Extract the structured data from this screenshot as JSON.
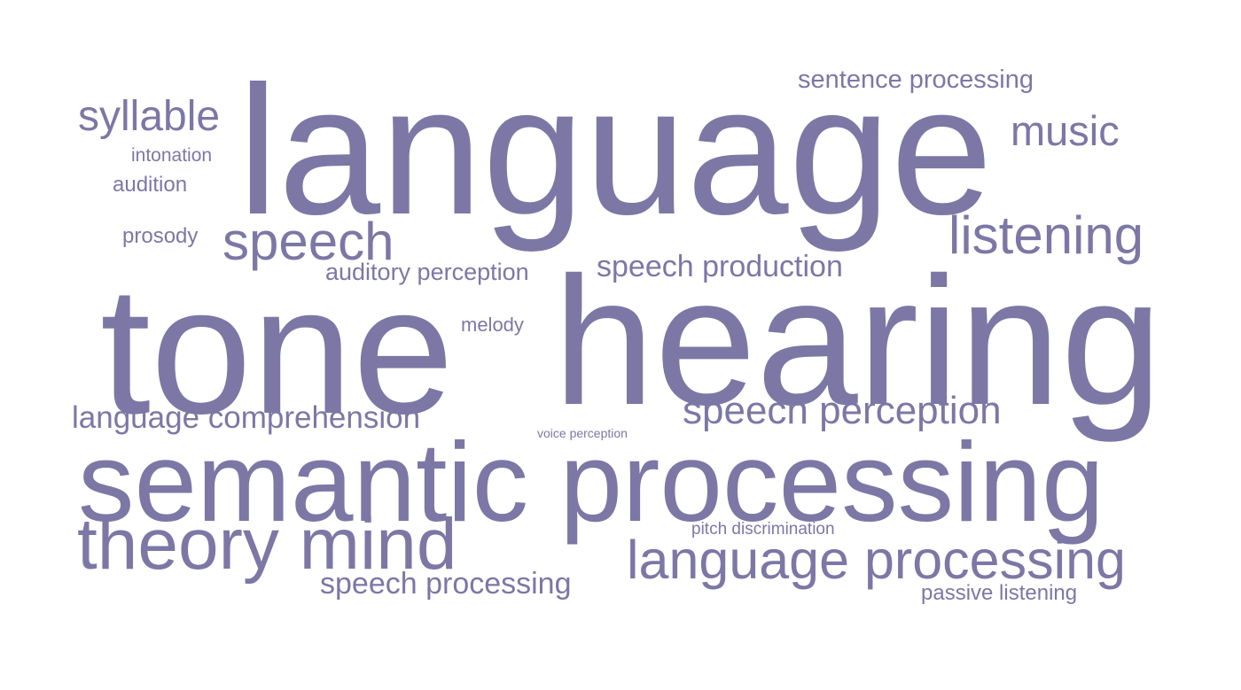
{
  "words": {
    "language": "language",
    "hearing": "hearing",
    "tone": "tone",
    "semantic_processing": "semantic processing",
    "theory_mind": "theory mind",
    "language_processing": "language processing",
    "listening": "listening",
    "speech": "speech",
    "syllable": "syllable",
    "music": "music",
    "speech_perception": "speech perception",
    "speech_production": "speech production",
    "language_comprehension": "language comprehension",
    "speech_processing": "speech processing",
    "sentence_processing": "sentence processing",
    "auditory_perception": "auditory perception",
    "audition": "audition",
    "prosody": "prosody",
    "intonation": "intonation",
    "melody": "melody",
    "passive_listening": "passive listening",
    "pitch_discrimination": "pitch discrimination",
    "voice_perception": "voice perception"
  },
  "colors": {
    "word": "#7d77a6",
    "background": "#ffffff"
  }
}
